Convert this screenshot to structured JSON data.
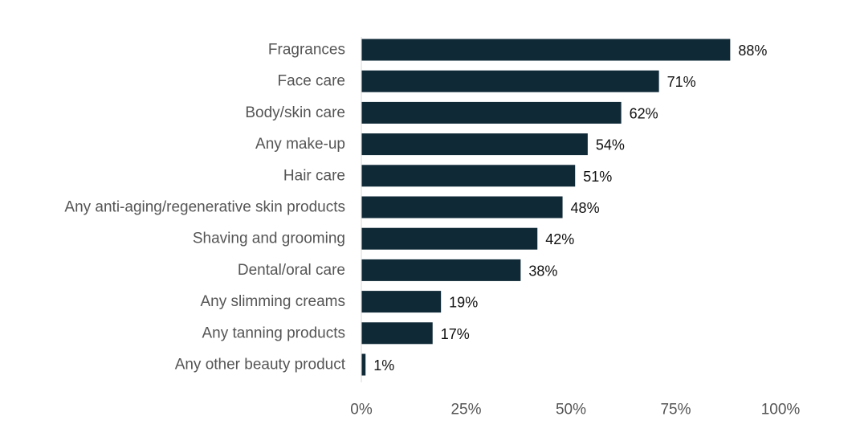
{
  "chart_data": {
    "type": "bar",
    "orientation": "horizontal",
    "title": "",
    "xlabel": "",
    "ylabel": "",
    "categories": [
      "Fragrances",
      "Face care",
      "Body/skin care",
      "Any make-up",
      "Hair care",
      "Any anti-aging/regenerative skin products",
      "Shaving and grooming",
      "Dental/oral care",
      "Any slimming creams",
      "Any tanning products",
      "Any other beauty product"
    ],
    "values": [
      88,
      71,
      62,
      54,
      51,
      48,
      42,
      38,
      19,
      17,
      1
    ],
    "data_labels": [
      "88%",
      "71%",
      "62%",
      "54%",
      "51%",
      "48%",
      "42%",
      "38%",
      "19%",
      "17%",
      "1%"
    ],
    "xlim": [
      0,
      100
    ],
    "x_ticks": [
      0,
      25,
      50,
      75,
      100
    ],
    "x_tick_labels": [
      "0%",
      "25%",
      "50%",
      "75%",
      "100%"
    ],
    "grid": false,
    "legend": "none",
    "bar_color": "#0f2937"
  }
}
